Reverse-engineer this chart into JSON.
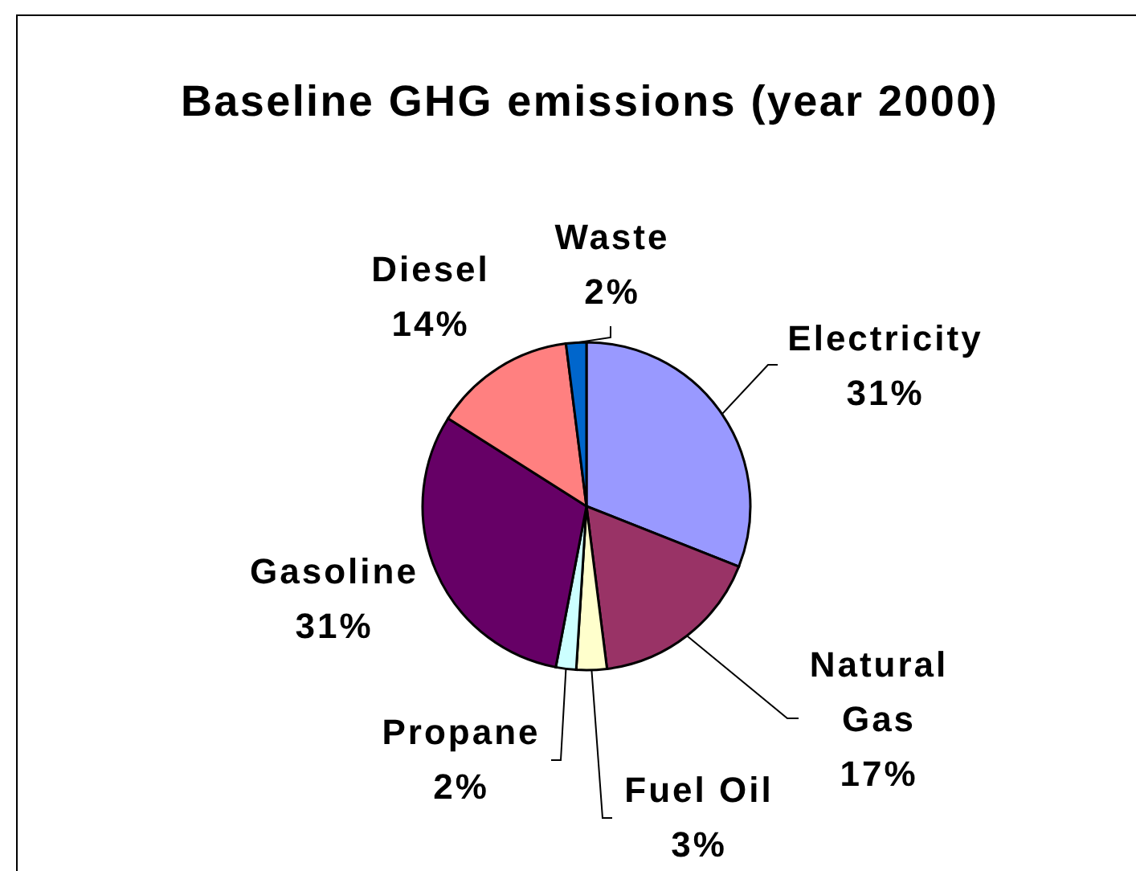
{
  "chart_data": {
    "type": "pie",
    "title": "Baseline GHG emissions (year 2000)",
    "categories": [
      "Electricity",
      "Natural Gas",
      "Fuel Oil",
      "Propane",
      "Gasoline",
      "Diesel",
      "Waste"
    ],
    "values": [
      31,
      17,
      3,
      2,
      31,
      14,
      2
    ],
    "value_labels": [
      "31%",
      "17%",
      "3%",
      "2%",
      "31%",
      "14%",
      "2%"
    ],
    "colors": [
      "#9999ff",
      "#993366",
      "#ffffcc",
      "#ccffff",
      "#660066",
      "#ff8080",
      "#0066cc"
    ]
  }
}
